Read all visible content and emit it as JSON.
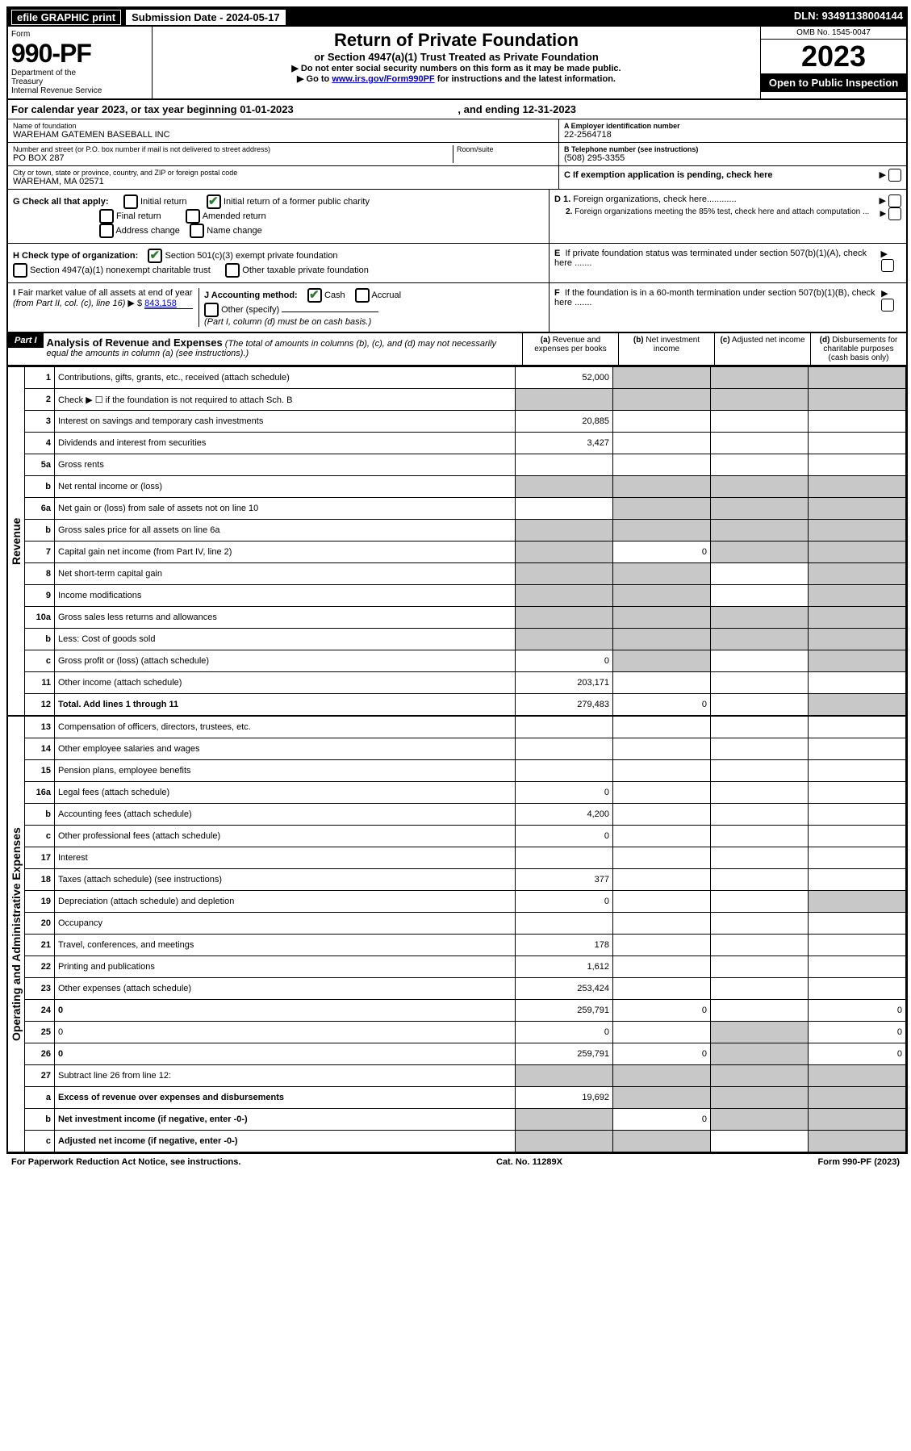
{
  "top": {
    "efile": "efile GRAPHIC print",
    "sub_label": "Submission Date - 2024-05-17",
    "dln": "DLN: 93491138004144"
  },
  "header": {
    "form_label": "Form",
    "form_number": "990-PF",
    "dept": "Department of the Treasury\nInternal Revenue Service",
    "title": "Return of Private Foundation",
    "subtitle": "or Section 4947(a)(1) Trust Treated as Private Foundation",
    "instr1": "▶ Do not enter social security numbers on this form as it may be made public.",
    "instr2_pre": "▶ Go to ",
    "instr2_link": "www.irs.gov/Form990PF",
    "instr2_post": " for instructions and the latest information.",
    "omb": "OMB No. 1545-0047",
    "year": "2023",
    "open": "Open to Public Inspection"
  },
  "cal_year": {
    "pre": "For calendar year 2023, or tax year beginning ",
    "start": "01-01-2023",
    "mid": ", and ending ",
    "end": "12-31-2023"
  },
  "info": {
    "name_lbl": "Name of foundation",
    "name_val": "WAREHAM GATEMEN BASEBALL INC",
    "addr_lbl": "Number and street (or P.O. box number if mail is not delivered to street address)",
    "addr_val": "PO BOX 287",
    "room_lbl": "Room/suite",
    "city_lbl": "City or town, state or province, country, and ZIP or foreign postal code",
    "city_val": "WAREHAM, MA  02571",
    "ein_lbl": "A Employer identification number",
    "ein_val": "22-2564718",
    "tel_lbl": "B Telephone number (see instructions)",
    "tel_val": "(508) 295-3355",
    "c_lbl": "C If exemption application is pending, check here"
  },
  "checks": {
    "g_label": "G Check all that apply:",
    "g1": "Initial return",
    "g2": "Initial return of a former public charity",
    "g3": "Final return",
    "g4": "Amended return",
    "g5": "Address change",
    "g6": "Name change",
    "h_label": "H Check type of organization:",
    "h1": "Section 501(c)(3) exempt private foundation",
    "h2": "Section 4947(a)(1) nonexempt charitable trust",
    "h3": "Other taxable private foundation",
    "i_label": "I Fair market value of all assets at end of year (from Part II, col. (c), line 16) ▶ $",
    "i_val": "843,158",
    "j_label": "J Accounting method:",
    "j1": "Cash",
    "j2": "Accrual",
    "j3": "Other (specify)",
    "j_note": "(Part I, column (d) must be on cash basis.)",
    "d1": "D 1. Foreign organizations, check here............",
    "d2": "2. Foreign organizations meeting the 85% test, check here and attach computation ...",
    "e": "E  If private foundation status was terminated under section 507(b)(1)(A), check here .......",
    "f": "F  If the foundation is in a 60-month termination under section 507(b)(1)(B), check here ......."
  },
  "part1": {
    "label": "Part I",
    "title": "Analysis of Revenue and Expenses",
    "note": "(The total of amounts in columns (b), (c), and (d) may not necessarily equal the amounts in column (a) (see instructions).)",
    "col_a": "(a) Revenue and expenses per books",
    "col_b": "(b) Net investment income",
    "col_c": "(c) Adjusted net income",
    "col_d": "(d) Disbursements for charitable purposes (cash basis only)"
  },
  "side_rev": "Revenue",
  "side_exp": "Operating and Administrative Expenses",
  "rows_rev": [
    {
      "n": "1",
      "d": "Contributions, gifts, grants, etc., received (attach schedule)",
      "a": "52,000",
      "grey": [
        "b",
        "c",
        "d"
      ]
    },
    {
      "n": "2",
      "d": "Check ▶ ☐ if the foundation is not required to attach Sch. B",
      "grey": [
        "a",
        "b",
        "c",
        "d"
      ]
    },
    {
      "n": "3",
      "d": "Interest on savings and temporary cash investments",
      "a": "20,885"
    },
    {
      "n": "4",
      "d": "Dividends and interest from securities",
      "a": "3,427"
    },
    {
      "n": "5a",
      "d": "Gross rents"
    },
    {
      "n": "b",
      "d": "Net rental income or (loss)",
      "grey": [
        "a",
        "b",
        "c",
        "d"
      ]
    },
    {
      "n": "6a",
      "d": "Net gain or (loss) from sale of assets not on line 10",
      "grey": [
        "b",
        "c",
        "d"
      ]
    },
    {
      "n": "b",
      "d": "Gross sales price for all assets on line 6a",
      "grey": [
        "a",
        "b",
        "c",
        "d"
      ]
    },
    {
      "n": "7",
      "d": "Capital gain net income (from Part IV, line 2)",
      "b": "0",
      "grey": [
        "a",
        "c",
        "d"
      ]
    },
    {
      "n": "8",
      "d": "Net short-term capital gain",
      "grey": [
        "a",
        "b",
        "d"
      ]
    },
    {
      "n": "9",
      "d": "Income modifications",
      "grey": [
        "a",
        "b",
        "d"
      ]
    },
    {
      "n": "10a",
      "d": "Gross sales less returns and allowances",
      "grey": [
        "a",
        "b",
        "c",
        "d"
      ]
    },
    {
      "n": "b",
      "d": "Less: Cost of goods sold",
      "grey": [
        "a",
        "b",
        "c",
        "d"
      ]
    },
    {
      "n": "c",
      "d": "Gross profit or (loss) (attach schedule)",
      "a": "0",
      "grey": [
        "b",
        "d"
      ]
    },
    {
      "n": "11",
      "d": "Other income (attach schedule)",
      "a": "203,171"
    },
    {
      "n": "12",
      "d": "Total. Add lines 1 through 11",
      "a": "279,483",
      "b": "0",
      "bold": true,
      "grey": [
        "d"
      ]
    }
  ],
  "rows_exp": [
    {
      "n": "13",
      "d": "Compensation of officers, directors, trustees, etc."
    },
    {
      "n": "14",
      "d": "Other employee salaries and wages"
    },
    {
      "n": "15",
      "d": "Pension plans, employee benefits"
    },
    {
      "n": "16a",
      "d": "Legal fees (attach schedule)",
      "a": "0"
    },
    {
      "n": "b",
      "d": "Accounting fees (attach schedule)",
      "a": "4,200"
    },
    {
      "n": "c",
      "d": "Other professional fees (attach schedule)",
      "a": "0"
    },
    {
      "n": "17",
      "d": "Interest"
    },
    {
      "n": "18",
      "d": "Taxes (attach schedule) (see instructions)",
      "a": "377"
    },
    {
      "n": "19",
      "d": "Depreciation (attach schedule) and depletion",
      "a": "0",
      "grey": [
        "d"
      ]
    },
    {
      "n": "20",
      "d": "Occupancy"
    },
    {
      "n": "21",
      "d": "Travel, conferences, and meetings",
      "a": "178"
    },
    {
      "n": "22",
      "d": "Printing and publications",
      "a": "1,612"
    },
    {
      "n": "23",
      "d": "Other expenses (attach schedule)",
      "a": "253,424"
    },
    {
      "n": "24",
      "d": "0",
      "a": "259,791",
      "b": "0",
      "bold": true
    },
    {
      "n": "25",
      "d": "0",
      "a": "0",
      "grey": [
        "c"
      ]
    },
    {
      "n": "26",
      "d": "0",
      "a": "259,791",
      "b": "0",
      "bold": true,
      "grey": [
        "c"
      ]
    },
    {
      "n": "27",
      "d": "Subtract line 26 from line 12:",
      "grey": [
        "a",
        "b",
        "c",
        "d"
      ]
    },
    {
      "n": "a",
      "d": "Excess of revenue over expenses and disbursements",
      "a": "19,692",
      "bold": true,
      "grey": [
        "b",
        "c",
        "d"
      ]
    },
    {
      "n": "b",
      "d": "Net investment income (if negative, enter -0-)",
      "b": "0",
      "bold": true,
      "grey": [
        "a",
        "c",
        "d"
      ]
    },
    {
      "n": "c",
      "d": "Adjusted net income (if negative, enter -0-)",
      "bold": true,
      "grey": [
        "a",
        "b",
        "d"
      ]
    }
  ],
  "footer": {
    "left": "For Paperwork Reduction Act Notice, see instructions.",
    "mid": "Cat. No. 11289X",
    "right": "Form 990-PF (2023)"
  }
}
